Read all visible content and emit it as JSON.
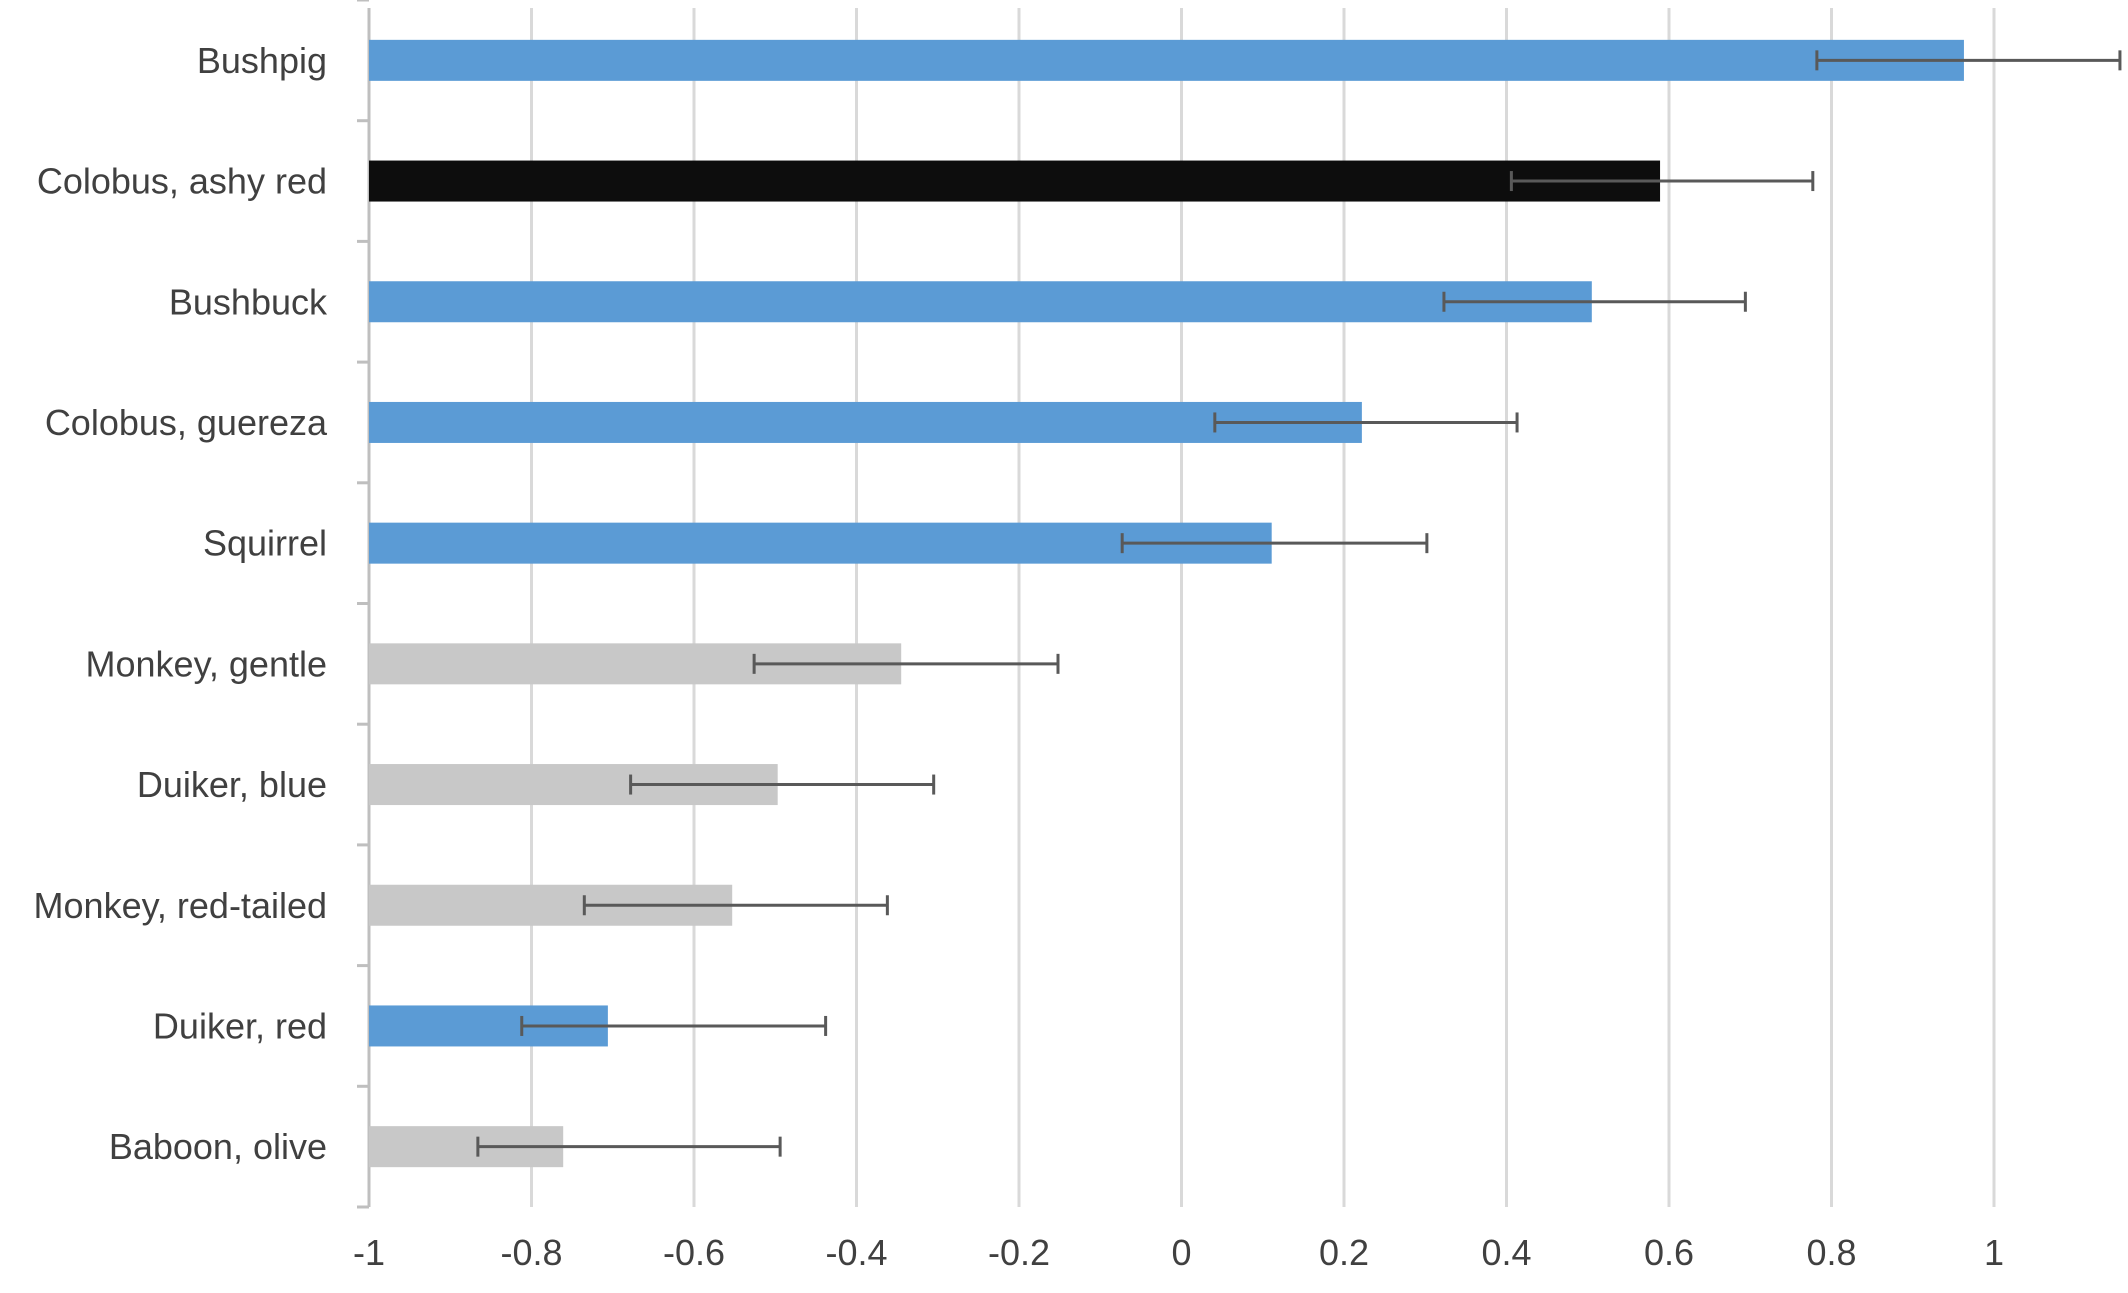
{
  "chart_data": {
    "type": "bar",
    "orientation": "horizontal",
    "title": "",
    "xlabel": "",
    "ylabel": "",
    "categories": [
      "Bushpig",
      "Colobus, ashy red",
      "Bushbuck",
      "Colobus, guereza",
      "Squirrel",
      "Monkey, gentle",
      "Duiker, blue",
      "Monkey, red-tailed",
      "Duiker, red",
      "Baboon, olive"
    ],
    "values": [
      0.963,
      0.589,
      0.505,
      0.222,
      0.111,
      -0.345,
      -0.497,
      -0.553,
      -0.706,
      -0.761
    ],
    "error_low": [
      0.782,
      0.406,
      0.323,
      0.041,
      -0.073,
      -0.526,
      -0.678,
      -0.735,
      -0.812,
      -0.866
    ],
    "error_high": [
      1.155,
      0.777,
      0.694,
      0.413,
      0.302,
      -0.152,
      -0.305,
      -0.362,
      -0.438,
      -0.494
    ],
    "bar_colors": [
      "#5b9bd5",
      "#0d0d0d",
      "#5b9bd5",
      "#5b9bd5",
      "#5b9bd5",
      "#c8c8c8",
      "#c8c8c8",
      "#c8c8c8",
      "#5b9bd5",
      "#c8c8c8"
    ],
    "xlim": [
      -1,
      1.15
    ],
    "x_ticks": [
      -1,
      -0.8,
      -0.6,
      -0.4,
      -0.2,
      0,
      0.2,
      0.4,
      0.6,
      0.8,
      1
    ],
    "x_tick_labels": [
      "-1",
      "-0.8",
      "-0.6",
      "-0.4",
      "-0.2",
      "0",
      "0.2",
      "0.4",
      "0.6",
      "0.8",
      "1"
    ],
    "grid": true,
    "legend": "none"
  }
}
